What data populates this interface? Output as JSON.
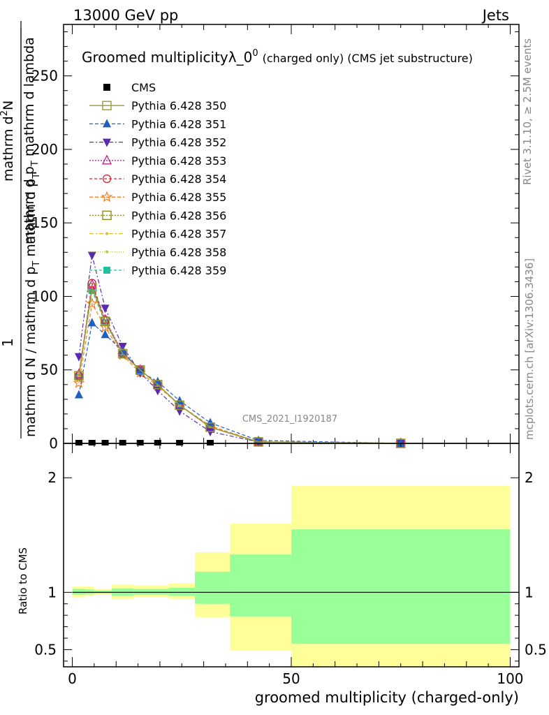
{
  "header": {
    "left": "13000 GeV pp",
    "right": "Jets",
    "title_main": "Groomed multiplicityλ_0",
    "title_sup": "0",
    "title_suffix": "(charged only) (CMS jet substructure)"
  },
  "side_labels": {
    "rivet": "Rivet 3.1.10, ≥ 2.5M events",
    "mcplots": "mcplots.cern.ch [arXiv:1306.3436]"
  },
  "watermark": "CMS_2021_I1920187",
  "axes": {
    "ylabel_top_numerator": "1",
    "ylabel_top_denominator": "mathrm d N / mathrm d p",
    "ylabel_top_denominator_sub": "T",
    "ylabel_top_denominator_tail": "mathrm d p",
    "ylabel_top_denominator_sub2": "T",
    "ylabel_top_rhs_numerator": "mathrm d",
    "ylabel_top_rhs_sup": "2",
    "ylabel_top_rhs_N": "N",
    "ylabel_top_rhs_denominator": "mathrm d p",
    "ylabel_top_rhs_sub": "T",
    "ylabel_top_rhs_tail": "mathrm d lambda",
    "ylabel_bottom": "Ratio to CMS",
    "xlabel": "groomed multiplicity (charged-only)"
  },
  "chart_data": {
    "type": "line",
    "xlim": [
      -2,
      102
    ],
    "ylim": [
      0,
      285
    ],
    "y_ticks": [
      0,
      50,
      100,
      150,
      200,
      250
    ],
    "x_ticks": [
      0,
      50,
      100
    ],
    "ratio_ylim": [
      0.35,
      2.3
    ],
    "ratio_ticks": [
      0.5,
      1,
      2
    ],
    "legend_position": "top-left",
    "data": {
      "name": "CMS",
      "x": [
        1.5,
        4.5,
        7.5,
        11.5,
        15.5,
        19.5,
        24.5,
        31.5
      ],
      "y": [
        0,
        0,
        0,
        0,
        0,
        0,
        0,
        0
      ]
    },
    "mc_x": [
      1.5,
      4.5,
      7.5,
      11.5,
      15.5,
      19.5,
      24.5,
      31.5,
      42.5,
      75
    ],
    "series": [
      {
        "name": "Pythia 6.428 350",
        "color": "#9a9a30",
        "marker": "square-open",
        "dash": "",
        "values": [
          46,
          106,
          83,
          61,
          50,
          40,
          26,
          11,
          1,
          0
        ]
      },
      {
        "name": "Pythia 6.428 351",
        "color": "#1f5fbf",
        "marker": "triangle-up",
        "dash": "5,3",
        "values": [
          33,
          82,
          74,
          63,
          49,
          42,
          29,
          14,
          2,
          0
        ]
      },
      {
        "name": "Pythia 6.428 352",
        "color": "#5a2bb0",
        "marker": "triangle-down",
        "dash": "6,3,2,3",
        "values": [
          59,
          128,
          92,
          66,
          48,
          36,
          22,
          8,
          1,
          0
        ]
      },
      {
        "name": "Pythia 6.428 353",
        "color": "#c0208a",
        "marker": "triangle-open",
        "dash": "2,2",
        "values": [
          47,
          108,
          84,
          62,
          50,
          40,
          26,
          11,
          1,
          0
        ]
      },
      {
        "name": "Pythia 6.428 354",
        "color": "#d8202a",
        "marker": "circle-open",
        "dash": "4,3",
        "values": [
          46,
          109,
          84,
          61,
          50,
          40,
          26,
          11,
          1,
          0
        ]
      },
      {
        "name": "Pythia 6.428 355",
        "color": "#ff7a1a",
        "marker": "star-open",
        "dash": "5,3",
        "values": [
          41,
          95,
          79,
          60,
          48,
          39,
          26,
          12,
          1,
          0
        ]
      },
      {
        "name": "Pythia 6.428 356",
        "color": "#8a8a1a",
        "marker": "square-open",
        "dash": "2,2",
        "values": [
          46,
          106,
          83,
          61,
          50,
          40,
          26,
          11,
          1,
          0
        ]
      },
      {
        "name": "Pythia 6.428 357",
        "color": "#d8c020",
        "marker": "dot",
        "dash": "6,3,2,3",
        "values": [
          46,
          106,
          83,
          61,
          50,
          40,
          26,
          11,
          1,
          0
        ]
      },
      {
        "name": "Pythia 6.428 358",
        "color": "#b8d020",
        "marker": "dot",
        "dash": "1,2",
        "values": [
          46,
          106,
          83,
          61,
          50,
          40,
          26,
          11,
          1,
          0
        ]
      },
      {
        "name": "Pythia 6.428 359",
        "color": "#20c0a0",
        "marker": "square",
        "dash": "4,3",
        "values": [
          45,
          104,
          82,
          61,
          50,
          40,
          26,
          11,
          1,
          0
        ]
      }
    ],
    "ratio_bands": [
      {
        "x0": 0,
        "x1": 3,
        "yellow": [
          0.96,
          1.05
        ],
        "green": [
          0.98,
          1.03
        ]
      },
      {
        "x0": 3,
        "x1": 5,
        "yellow": [
          0.97,
          1.05
        ],
        "green": [
          0.985,
          1.025
        ]
      },
      {
        "x0": 5,
        "x1": 9,
        "yellow": [
          0.98,
          1.03
        ],
        "green": [
          0.99,
          1.015
        ]
      },
      {
        "x0": 9,
        "x1": 14,
        "yellow": [
          0.94,
          1.07
        ],
        "green": [
          0.97,
          1.035
        ]
      },
      {
        "x0": 14,
        "x1": 22,
        "yellow": [
          0.96,
          1.06
        ],
        "green": [
          0.98,
          1.03
        ]
      },
      {
        "x0": 22,
        "x1": 28,
        "yellow": [
          0.94,
          1.08
        ],
        "green": [
          0.97,
          1.04
        ]
      },
      {
        "x0": 28,
        "x1": 36,
        "yellow": [
          0.78,
          1.35
        ],
        "green": [
          0.9,
          1.18
        ]
      },
      {
        "x0": 36,
        "x1": 50,
        "yellow": [
          0.49,
          1.6
        ],
        "green": [
          0.79,
          1.33
        ]
      },
      {
        "x0": 50,
        "x1": 100,
        "yellow": [
          0.35,
          1.93
        ],
        "green": [
          0.55,
          1.55
        ]
      }
    ]
  }
}
